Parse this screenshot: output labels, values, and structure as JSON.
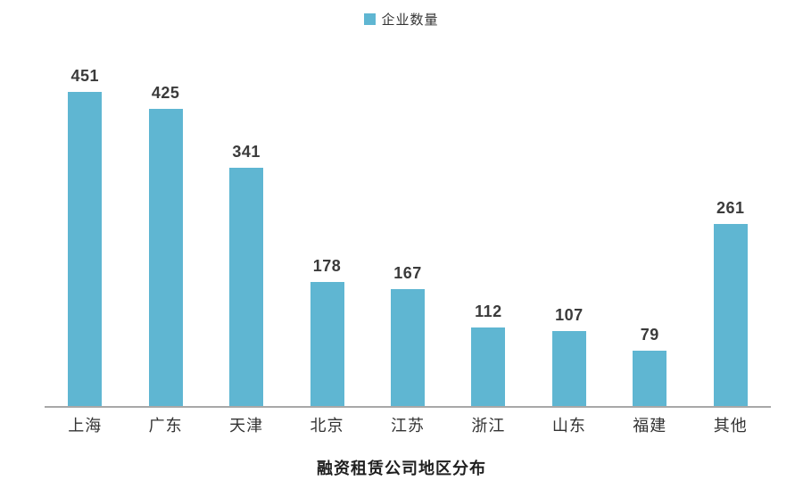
{
  "legend": {
    "label": "企业数量",
    "swatch_color": "#5FB6D2"
  },
  "title": "融资租赁公司地区分布",
  "colors": {
    "bar": "#5FB6D2",
    "axis_line": "#A8A8A8",
    "value_label_text": "#3B3B3B",
    "category_text": "#333333",
    "title_text": "#1F1F1F",
    "background": "#FFFFFF"
  },
  "chart_data": {
    "type": "bar",
    "title": "融资租赁公司地区分布",
    "series_name": "企业数量",
    "categories": [
      "上海",
      "广东",
      "天津",
      "北京",
      "江苏",
      "浙江",
      "山东",
      "福建",
      "其他"
    ],
    "values": [
      451,
      425,
      341,
      178,
      167,
      112,
      107,
      79,
      261
    ],
    "xlabel": "",
    "ylabel": "",
    "ylim": [
      0,
      485
    ],
    "grid": false,
    "y_axis_visible": false,
    "data_labels": true,
    "legend_position": "top-center",
    "title_position": "bottom-center"
  }
}
